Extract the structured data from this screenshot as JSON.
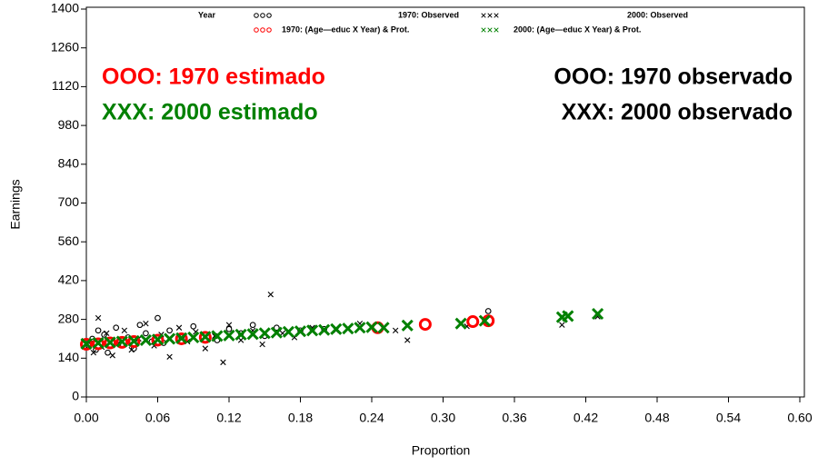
{
  "chart_data": {
    "type": "scatter",
    "x_label": "Proportion",
    "y_label": "Earnings",
    "legend_title": "Year",
    "xlim": [
      0,
      0.6
    ],
    "xticks": [
      {
        "value": 0,
        "label": "0.00"
      },
      {
        "value": 0.06,
        "label": "0.06"
      },
      {
        "value": 0.12,
        "label": "0.12"
      },
      {
        "value": 0.18,
        "label": "0.18"
      },
      {
        "value": 0.24,
        "label": "0.24"
      },
      {
        "value": 0.3,
        "label": "0.30"
      },
      {
        "value": 0.36,
        "label": "0.36"
      },
      {
        "value": 0.42,
        "label": "0.42"
      },
      {
        "value": 0.48,
        "label": "0.48"
      },
      {
        "value": 0.54,
        "label": "0.54"
      },
      {
        "value": 0.6,
        "label": "0.60"
      }
    ],
    "ylim": [
      0,
      1400
    ],
    "yticks": [
      0,
      140,
      280,
      420,
      560,
      700,
      840,
      980,
      1120,
      1260,
      1400
    ],
    "annotations": [
      {
        "text": "OOO: 1970 estimado",
        "color": "#ff0000"
      },
      {
        "text": "XXX: 2000 estimado",
        "color": "#008000"
      },
      {
        "text": "OOO: 1970 observado",
        "color": "#000000"
      },
      {
        "text": "XXX: 2000 observado",
        "color": "#000000"
      }
    ],
    "series": [
      {
        "name": "1970: Observed",
        "color": "#000000",
        "marker": "o",
        "x": [
          0.002,
          0.005,
          0.008,
          0.01,
          0.012,
          0.015,
          0.018,
          0.02,
          0.025,
          0.03,
          0.035,
          0.04,
          0.045,
          0.05,
          0.055,
          0.06,
          0.065,
          0.07,
          0.08,
          0.09,
          0.1,
          0.11,
          0.12,
          0.13,
          0.14,
          0.15,
          0.16,
          0.18,
          0.2,
          0.338
        ],
        "values": [
          185,
          210,
          170,
          240,
          195,
          225,
          160,
          205,
          250,
          190,
          215,
          175,
          260,
          230,
          200,
          285,
          195,
          240,
          215,
          255,
          225,
          205,
          245,
          230,
          260,
          220,
          250,
          240,
          245,
          310
        ]
      },
      {
        "name": "2000: Observed",
        "color": "#000000",
        "marker": "x",
        "x": [
          0.003,
          0.006,
          0.01,
          0.013,
          0.017,
          0.022,
          0.027,
          0.032,
          0.038,
          0.044,
          0.05,
          0.057,
          0.063,
          0.07,
          0.078,
          0.085,
          0.092,
          0.1,
          0.108,
          0.115,
          0.12,
          0.13,
          0.14,
          0.148,
          0.155,
          0.165,
          0.175,
          0.19,
          0.21,
          0.23,
          0.26,
          0.27,
          0.32,
          0.4,
          0.43
        ],
        "values": [
          200,
          160,
          285,
          180,
          230,
          150,
          195,
          240,
          170,
          210,
          265,
          185,
          225,
          145,
          250,
          200,
          235,
          175,
          220,
          125,
          260,
          205,
          240,
          190,
          370,
          230,
          215,
          250,
          240,
          265,
          240,
          205,
          255,
          260,
          290
        ]
      },
      {
        "name": "1970: (Age—educ X Year) & Prot.",
        "color": "#ff0000",
        "marker": "o",
        "x": [
          0,
          0.01,
          0.02,
          0.03,
          0.04,
          0.06,
          0.08,
          0.1,
          0.245,
          0.285,
          0.325,
          0.338
        ],
        "values": [
          190,
          192,
          195,
          197,
          200,
          205,
          210,
          215,
          250,
          262,
          272,
          275
        ]
      },
      {
        "name": "2000: (Age—educ X Year) & Prot.",
        "color": "#008000",
        "marker": "x",
        "x": [
          0,
          0.01,
          0.02,
          0.03,
          0.04,
          0.05,
          0.06,
          0.07,
          0.08,
          0.09,
          0.1,
          0.11,
          0.12,
          0.13,
          0.14,
          0.15,
          0.16,
          0.17,
          0.18,
          0.19,
          0.2,
          0.21,
          0.22,
          0.23,
          0.24,
          0.25,
          0.27,
          0.315,
          0.335,
          0.4,
          0.405,
          0.43
        ],
        "values": [
          192,
          195,
          197,
          200,
          202,
          205,
          207,
          210,
          212,
          215,
          217,
          220,
          222,
          225,
          227,
          230,
          232,
          235,
          237,
          240,
          242,
          245,
          247,
          250,
          252,
          250,
          258,
          265,
          275,
          288,
          292,
          300
        ]
      }
    ]
  }
}
